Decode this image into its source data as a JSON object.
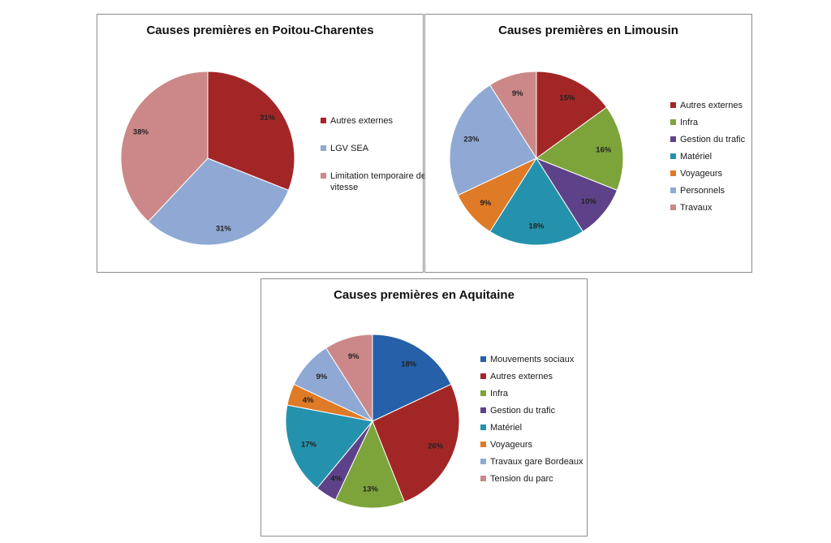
{
  "chart_data": [
    {
      "type": "pie",
      "title": "Causes premières en Poitou-Charentes",
      "categories": [
        "Autres externes",
        "LGV SEA",
        "Limitation temporaire de vitesse"
      ],
      "values": [
        31,
        31,
        38
      ],
      "labels": [
        "31%",
        "31%",
        "38%"
      ],
      "colors": [
        "#A32626",
        "#8FA9D4",
        "#CC8888"
      ],
      "legend_position": "right"
    },
    {
      "type": "pie",
      "title": "Causes premières en Limousin",
      "categories": [
        "Autres externes",
        "Infra",
        "Gestion du trafic",
        "Matériel",
        "Voyageurs",
        "Personnels",
        "Travaux"
      ],
      "values": [
        15,
        16,
        10,
        18,
        9,
        23,
        9
      ],
      "labels": [
        "15%",
        "16%",
        "10%",
        "18%",
        "9%",
        "23%",
        "9%"
      ],
      "colors": [
        "#A32626",
        "#7DA43A",
        "#5E4289",
        "#2592AD",
        "#DF7A26",
        "#8FA9D4",
        "#CC8888"
      ],
      "legend_position": "right"
    },
    {
      "type": "pie",
      "title": "Causes premières en Aquitaine",
      "categories": [
        "Mouvements sociaux",
        "Autres externes",
        "Infra",
        "Gestion du trafic",
        "Matériel",
        "Voyageurs",
        "Travaux gare Bordeaux",
        "Tension du parc"
      ],
      "values": [
        18,
        26,
        13,
        4,
        17,
        4,
        9,
        9
      ],
      "labels": [
        "18%",
        "26%",
        "13%",
        "4%",
        "17%",
        "4%",
        "9%",
        "9%"
      ],
      "colors": [
        "#2560A8",
        "#A32626",
        "#7DA43A",
        "#5E4289",
        "#2592AD",
        "#DF7A26",
        "#8FA9D4",
        "#CC8888"
      ],
      "legend_position": "right"
    }
  ]
}
